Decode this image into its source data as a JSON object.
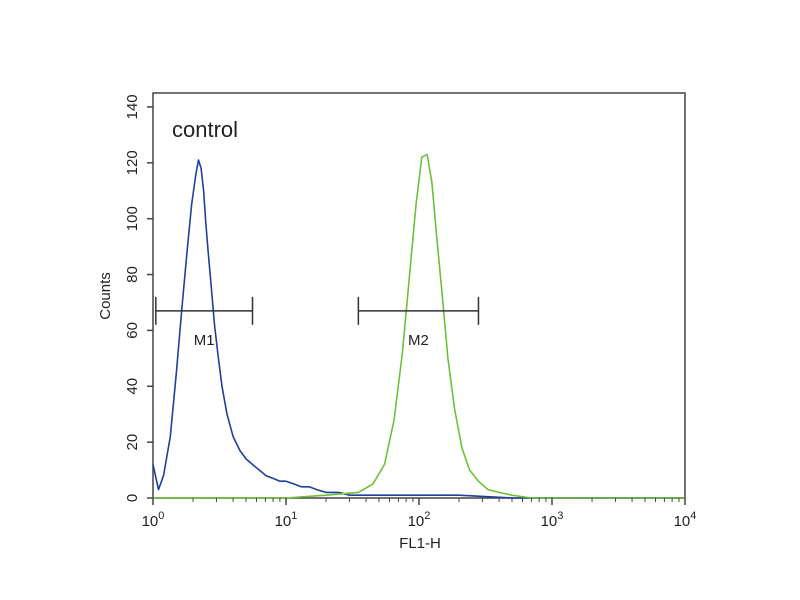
{
  "chart_data": {
    "type": "line",
    "title": "",
    "xlabel": "FL1-H",
    "ylabel": "Counts",
    "x_scale": "log",
    "xlim": [
      1,
      10000
    ],
    "ylim": [
      0,
      145
    ],
    "x_ticks": [
      {
        "value": 1,
        "base": "10",
        "exp": "0"
      },
      {
        "value": 10,
        "base": "10",
        "exp": "1"
      },
      {
        "value": 100,
        "base": "10",
        "exp": "2"
      },
      {
        "value": 1000,
        "base": "10",
        "exp": "3"
      },
      {
        "value": 10000,
        "base": "10",
        "exp": "4"
      }
    ],
    "y_ticks": [
      0,
      20,
      40,
      60,
      80,
      100,
      120,
      140
    ],
    "grid": false,
    "annotation": "control",
    "series": [
      {
        "color": "#1f3f9a",
        "x": [
          1.0,
          1.1,
          1.2,
          1.35,
          1.5,
          1.65,
          1.8,
          1.95,
          2.1,
          2.2,
          2.3,
          2.4,
          2.5,
          2.6,
          2.75,
          2.9,
          3.1,
          3.3,
          3.6,
          4.0,
          4.5,
          5.0,
          5.6,
          6.3,
          7.1,
          8.0,
          9.0,
          10.0,
          11.5,
          13.0,
          15.0,
          17.0,
          20.0,
          25.0,
          30.0,
          40.0,
          60.0,
          100.0,
          200.0,
          500.0,
          1000.0,
          10000.0
        ],
        "y": [
          12,
          3,
          8,
          22,
          45,
          68,
          88,
          105,
          116,
          121,
          118,
          110,
          98,
          88,
          75,
          62,
          50,
          40,
          30,
          22,
          17,
          14,
          12,
          10,
          8,
          7,
          6,
          6,
          5,
          4,
          4,
          3,
          2,
          2,
          1,
          1,
          1,
          1,
          1,
          0,
          0,
          0
        ]
      },
      {
        "color": "#6fbf3a",
        "x": [
          1.0,
          10.0,
          20.0,
          35.0,
          45.0,
          55.0,
          65.0,
          75.0,
          85.0,
          95.0,
          105.0,
          115.0,
          125.0,
          135.0,
          150.0,
          165.0,
          185.0,
          210.0,
          240.0,
          280.0,
          330.0,
          400.0,
          500.0,
          700.0,
          1000.0,
          10000.0
        ],
        "y": [
          0,
          0,
          1,
          2,
          5,
          12,
          28,
          52,
          80,
          105,
          122,
          123,
          113,
          95,
          72,
          50,
          32,
          18,
          10,
          6,
          3,
          2,
          1,
          0,
          0,
          0
        ]
      }
    ],
    "markers": [
      {
        "label": "M1",
        "x_start": 1.05,
        "x_end": 5.6,
        "y": 67
      },
      {
        "label": "M2",
        "x_start": 35.0,
        "x_end": 280.0,
        "y": 67
      }
    ]
  }
}
